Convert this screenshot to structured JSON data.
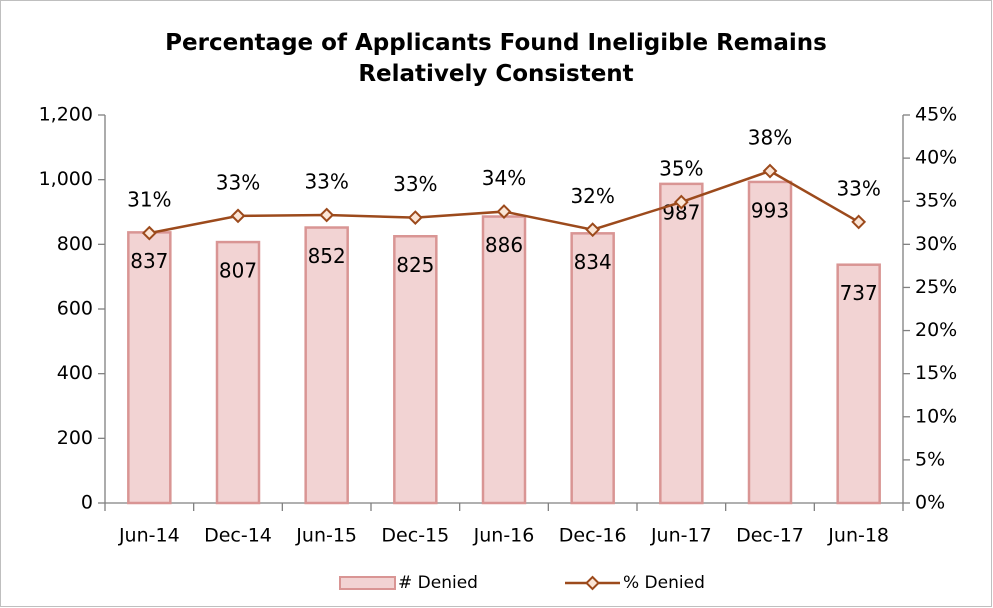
{
  "chart_data": {
    "type": "bar",
    "title": "Percentage of Applicants Found Ineligible Remains Relatively Consistent",
    "categories": [
      "Jun-14",
      "Dec-14",
      "Jun-15",
      "Dec-15",
      "Jun-16",
      "Dec-16",
      "Jun-17",
      "Dec-17",
      "Jun-18"
    ],
    "series": [
      {
        "name": "# Denied",
        "type": "bar",
        "color": "#f2d3d3",
        "edge": "#d99594",
        "values": [
          837,
          807,
          852,
          825,
          886,
          834,
          987,
          993,
          737
        ]
      },
      {
        "name": "% Denied",
        "type": "line",
        "axis": "y2",
        "color": "#9c4a1c",
        "values": [
          31.3,
          33.3,
          33.4,
          33.1,
          33.8,
          31.7,
          34.9,
          38.5,
          32.6
        ],
        "value_labels": [
          "31%",
          "33%",
          "33%",
          "33%",
          "34%",
          "32%",
          "35%",
          "38%",
          "33%"
        ]
      }
    ],
    "ylim": [
      0,
      1200
    ],
    "yticks": [
      0,
      200,
      400,
      600,
      800,
      {
        "value": 1000,
        "label": "1,000"
      },
      {
        "value": 1200,
        "label": "1,200"
      }
    ],
    "y2lim": [
      0,
      45
    ],
    "y2ticks": [
      {
        "value": 0,
        "label": "0%"
      },
      {
        "value": 5,
        "label": "5%"
      },
      {
        "value": 10,
        "label": "10%"
      },
      {
        "value": 15,
        "label": "15%"
      },
      {
        "value": 20,
        "label": "20%"
      },
      {
        "value": 25,
        "label": "25%"
      },
      {
        "value": 30,
        "label": "30%"
      },
      {
        "value": 35,
        "label": "35%"
      },
      {
        "value": 40,
        "label": "40%"
      },
      {
        "value": 45,
        "label": "45%"
      }
    ],
    "grid": false,
    "legend": "bottom"
  }
}
